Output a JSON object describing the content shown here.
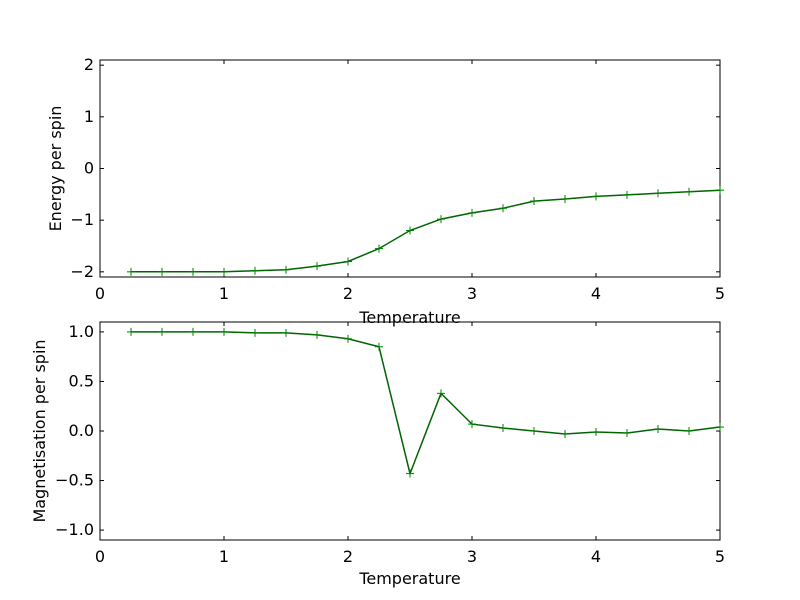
{
  "chart_data": [
    {
      "type": "line",
      "xlabel": "Temperature",
      "ylabel": "Energy per spin",
      "xlim": [
        0,
        5
      ],
      "ylim": [
        -2.1,
        2.1
      ],
      "xticks": [
        "0",
        "1",
        "2",
        "3",
        "4",
        "5"
      ],
      "yticks": [
        "2",
        "1",
        "0",
        "−1",
        "−2"
      ],
      "marker": "+",
      "line_color": "#006400",
      "marker_color": "#008000",
      "x": [
        0.25,
        0.5,
        0.75,
        1.0,
        1.25,
        1.5,
        1.75,
        2.0,
        2.25,
        2.5,
        2.75,
        3.0,
        3.25,
        3.5,
        3.75,
        4.0,
        4.25,
        4.5,
        4.75,
        5.0
      ],
      "y": [
        -2.0,
        -2.0,
        -2.0,
        -2.0,
        -1.98,
        -1.96,
        -1.89,
        -1.8,
        -1.55,
        -1.2,
        -0.98,
        -0.86,
        -0.77,
        -0.63,
        -0.59,
        -0.54,
        -0.51,
        -0.48,
        -0.45,
        -0.42
      ]
    },
    {
      "type": "line",
      "xlabel": "Temperature",
      "ylabel": "Magnetisation per spin",
      "xlim": [
        0,
        5
      ],
      "ylim": [
        -1.1,
        1.1
      ],
      "xticks": [
        "0",
        "1",
        "2",
        "3",
        "4",
        "5"
      ],
      "yticks": [
        "1.0",
        "0.5",
        "0.0",
        "−0.5",
        "−1.0"
      ],
      "marker": "+",
      "line_color": "#006400",
      "marker_color": "#008000",
      "x": [
        0.25,
        0.5,
        0.75,
        1.0,
        1.25,
        1.5,
        1.75,
        2.0,
        2.25,
        2.5,
        2.75,
        3.0,
        3.25,
        3.5,
        3.75,
        4.0,
        4.25,
        4.5,
        4.75,
        5.0
      ],
      "y": [
        1.0,
        1.0,
        1.0,
        1.0,
        0.99,
        0.99,
        0.97,
        0.93,
        0.85,
        -0.43,
        0.38,
        0.07,
        0.03,
        0.0,
        -0.03,
        -0.01,
        -0.02,
        0.02,
        0.0,
        0.04
      ]
    }
  ]
}
